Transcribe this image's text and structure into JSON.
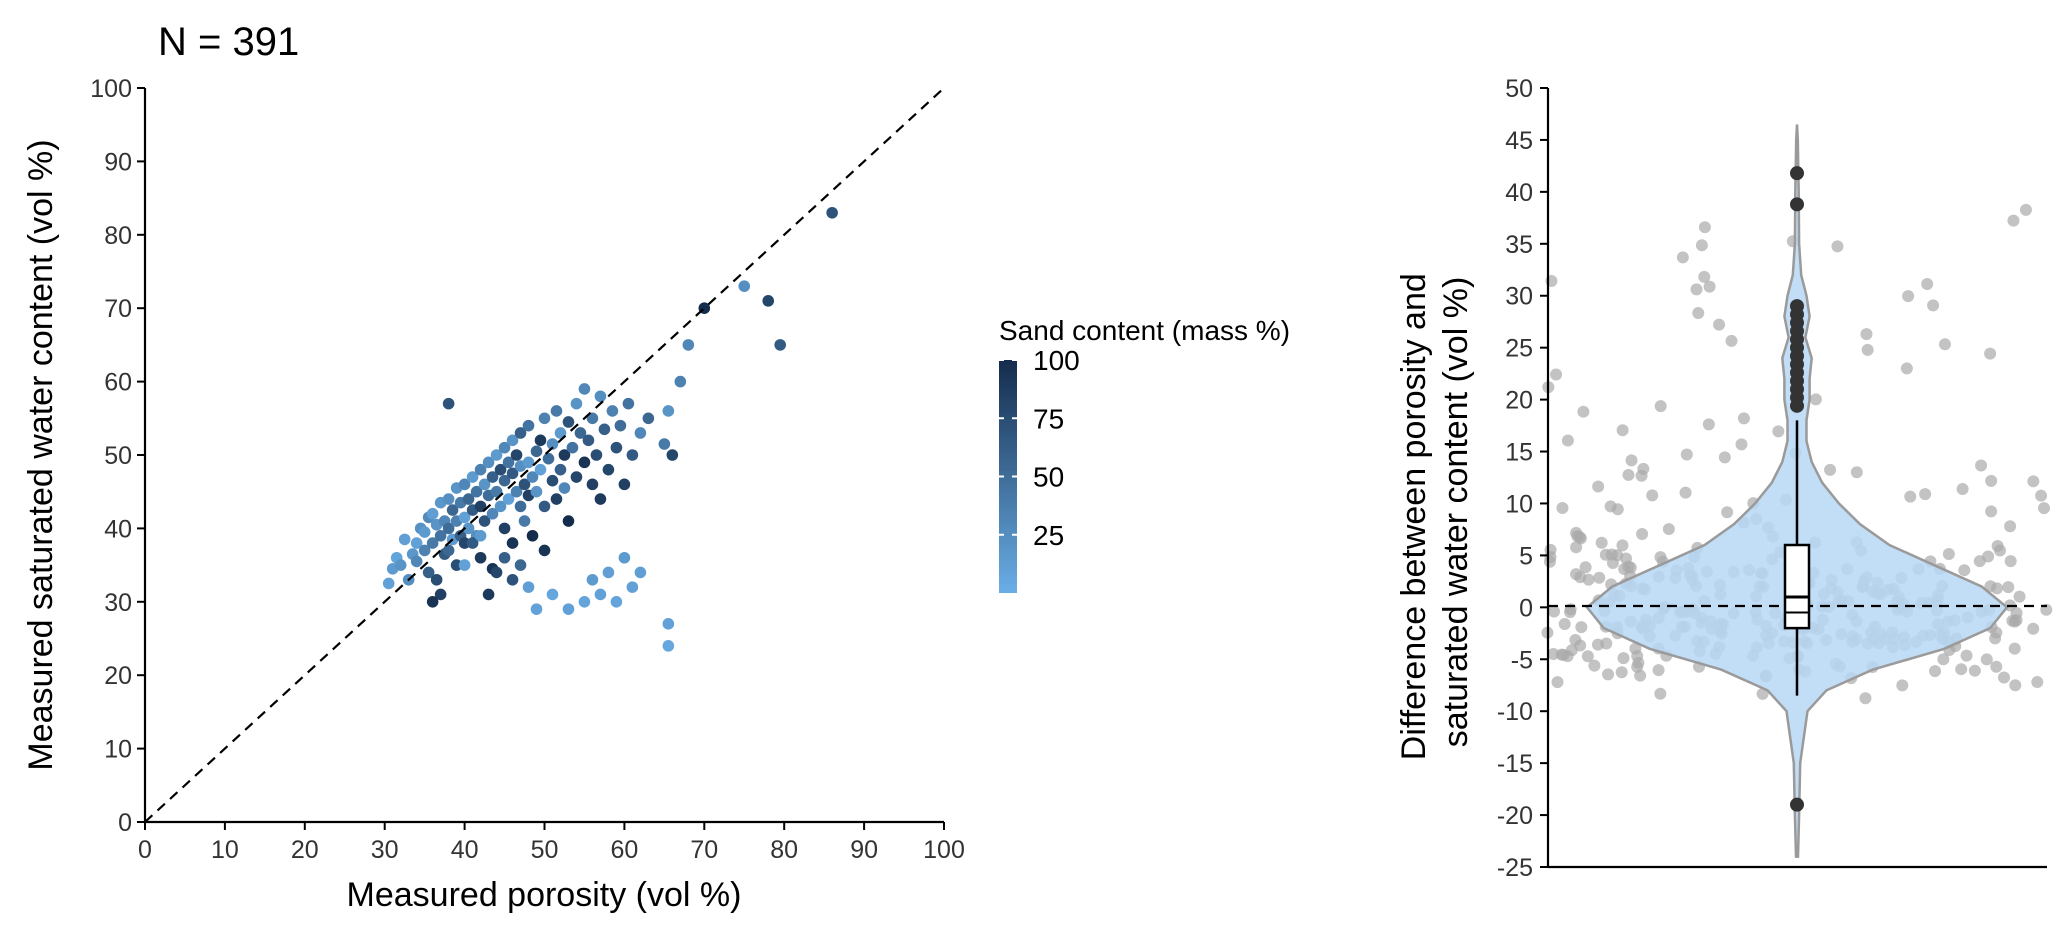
{
  "chart_data": [
    {
      "type": "scatter",
      "title": "N = 391",
      "xlabel": "Measured porosity (vol %)",
      "ylabel": "Measured saturated water content (vol %)",
      "xlim": [
        0,
        100
      ],
      "ylim": [
        0,
        100
      ],
      "x_ticks": [
        "0",
        "10",
        "20",
        "30",
        "40",
        "50",
        "60",
        "70",
        "80",
        "90",
        "100"
      ],
      "y_ticks": [
        "0",
        "10",
        "20",
        "30",
        "40",
        "50",
        "60",
        "70",
        "80",
        "90",
        "100"
      ],
      "reference_line": "1:1 dashed",
      "grid": false,
      "colorbar": {
        "title": "Sand content (mass %)",
        "ticks": [
          "25",
          "50",
          "75",
          "100"
        ],
        "range": [
          0,
          100
        ],
        "low_color": "#6aaee6",
        "high_color": "#142c4c"
      },
      "points": [
        [
          30.5,
          32.5,
          10
        ],
        [
          31,
          34.5,
          15
        ],
        [
          31.5,
          36,
          8
        ],
        [
          32,
          35,
          20
        ],
        [
          32.5,
          38.5,
          12
        ],
        [
          33,
          33,
          25
        ],
        [
          33.5,
          36.5,
          18
        ],
        [
          34,
          35.5,
          30
        ],
        [
          34,
          38,
          10
        ],
        [
          34.5,
          40,
          22
        ],
        [
          35,
          37,
          35
        ],
        [
          35,
          39.5,
          15
        ],
        [
          35.5,
          41.5,
          28
        ],
        [
          35.5,
          34,
          60
        ],
        [
          36,
          38,
          40
        ],
        [
          36,
          42,
          12
        ],
        [
          36.5,
          40.5,
          20
        ],
        [
          36.5,
          33,
          75
        ],
        [
          37,
          39,
          45
        ],
        [
          37,
          43.5,
          18
        ],
        [
          37.5,
          41,
          30
        ],
        [
          37.5,
          36.5,
          65
        ],
        [
          38,
          40,
          50
        ],
        [
          38,
          44,
          25
        ],
        [
          38,
          57,
          70
        ],
        [
          38.5,
          38.5,
          15
        ],
        [
          38.5,
          42.5,
          55
        ],
        [
          39,
          41,
          35
        ],
        [
          39,
          45.5,
          20
        ],
        [
          39.5,
          39,
          60
        ],
        [
          39.5,
          43.5,
          40
        ],
        [
          40,
          41.5,
          10
        ],
        [
          40,
          46,
          30
        ],
        [
          40,
          38,
          80
        ],
        [
          40.5,
          44,
          55
        ],
        [
          40.5,
          40,
          20
        ],
        [
          41,
          42.5,
          65
        ],
        [
          41,
          47,
          15
        ],
        [
          41.5,
          45,
          45
        ],
        [
          41.5,
          39,
          25
        ],
        [
          42,
          43,
          85
        ],
        [
          42,
          48,
          35
        ],
        [
          42,
          36,
          90
        ],
        [
          42.5,
          46,
          20
        ],
        [
          42.5,
          41,
          70
        ],
        [
          43,
          44.5,
          50
        ],
        [
          43,
          49,
          25
        ],
        [
          43.5,
          47,
          60
        ],
        [
          43.5,
          42,
          30
        ],
        [
          43.5,
          34.5,
          95
        ],
        [
          44,
          45,
          40
        ],
        [
          44,
          50,
          15
        ],
        [
          44.5,
          48,
          75
        ],
        [
          44.5,
          43,
          20
        ],
        [
          45,
          46.5,
          55
        ],
        [
          45,
          51,
          30
        ],
        [
          45,
          40,
          85
        ],
        [
          45.5,
          49,
          45
        ],
        [
          45.5,
          44,
          10
        ],
        [
          46,
          47.5,
          65
        ],
        [
          46,
          52,
          20
        ],
        [
          46,
          38,
          95
        ],
        [
          46.5,
          45,
          35
        ],
        [
          46.5,
          50,
          80
        ],
        [
          47,
          43,
          50
        ],
        [
          47,
          48.5,
          25
        ],
        [
          47,
          53,
          60
        ],
        [
          47.5,
          46,
          70
        ],
        [
          47.5,
          41,
          40
        ],
        [
          48,
          49,
          15
        ],
        [
          48,
          44.5,
          85
        ],
        [
          48,
          54,
          45
        ],
        [
          48.5,
          47,
          30
        ],
        [
          48.5,
          39,
          100
        ],
        [
          49,
          50.5,
          55
        ],
        [
          49,
          45,
          20
        ],
        [
          49.5,
          52,
          90
        ],
        [
          49.5,
          48,
          10
        ],
        [
          50,
          43,
          65
        ],
        [
          50,
          55,
          35
        ],
        [
          50,
          37,
          95
        ],
        [
          50.5,
          49.5,
          50
        ],
        [
          51,
          46.5,
          75
        ],
        [
          51,
          51.5,
          25
        ],
        [
          51.5,
          44,
          85
        ],
        [
          51.5,
          56,
          40
        ],
        [
          52,
          48,
          60
        ],
        [
          52,
          53,
          15
        ],
        [
          52.5,
          50,
          90
        ],
        [
          52.5,
          45.5,
          30
        ],
        [
          53,
          54.5,
          70
        ],
        [
          53,
          41,
          100
        ],
        [
          53.5,
          51,
          45
        ],
        [
          54,
          47,
          80
        ],
        [
          54,
          57,
          20
        ],
        [
          54.5,
          53,
          55
        ],
        [
          55,
          49,
          95
        ],
        [
          55,
          59,
          30
        ],
        [
          55.5,
          52,
          65
        ],
        [
          56,
          46,
          85
        ],
        [
          56,
          55,
          40
        ],
        [
          56.5,
          50,
          75
        ],
        [
          57,
          58,
          25
        ],
        [
          57,
          44,
          90
        ],
        [
          57.5,
          53.5,
          60
        ],
        [
          58,
          48,
          80
        ],
        [
          58.5,
          56,
          35
        ],
        [
          59,
          51,
          70
        ],
        [
          59.5,
          54,
          50
        ],
        [
          60,
          46,
          85
        ],
        [
          60.5,
          57,
          45
        ],
        [
          61,
          50,
          65
        ],
        [
          62,
          53,
          30
        ],
        [
          63,
          55,
          55
        ],
        [
          65,
          51.5,
          40
        ],
        [
          65.5,
          56,
          20
        ],
        [
          66,
          50,
          80
        ],
        [
          67,
          60,
          35
        ],
        [
          68,
          65,
          30
        ],
        [
          70,
          70,
          100
        ],
        [
          75,
          73,
          25
        ],
        [
          78,
          71,
          80
        ],
        [
          79.5,
          65,
          65
        ],
        [
          86,
          83,
          70
        ],
        [
          65.5,
          27,
          10
        ],
        [
          65.5,
          24,
          5
        ],
        [
          56,
          33,
          15
        ],
        [
          57,
          31,
          10
        ],
        [
          58,
          34,
          12
        ],
        [
          59,
          30,
          8
        ],
        [
          60,
          36,
          15
        ],
        [
          61,
          32,
          10
        ],
        [
          62,
          34,
          12
        ],
        [
          55,
          30,
          8
        ],
        [
          53,
          29,
          10
        ],
        [
          51,
          31,
          6
        ],
        [
          49,
          29,
          9
        ],
        [
          48,
          32,
          12
        ],
        [
          47,
          35,
          55
        ],
        [
          46,
          33,
          70
        ],
        [
          45,
          36,
          60
        ],
        [
          44,
          34,
          80
        ],
        [
          43,
          31,
          90
        ],
        [
          41,
          38,
          65
        ],
        [
          39,
          35,
          75
        ],
        [
          37,
          31,
          85
        ],
        [
          36,
          30,
          95
        ],
        [
          38,
          37,
          55
        ],
        [
          40,
          35,
          10
        ],
        [
          42,
          39,
          15
        ]
      ]
    },
    {
      "type": "violin",
      "ylabel": "Difference between porosity and saturated water content (vol %)",
      "ylabel_lines": [
        "Difference between porosity and",
        "saturated water content (vol %)"
      ],
      "ylim": [
        -25,
        50
      ],
      "y_ticks": [
        "-25",
        "-20",
        "-15",
        "-10",
        "-5",
        "0",
        "5",
        "10",
        "15",
        "20",
        "25",
        "30",
        "35",
        "40",
        "45",
        "50"
      ],
      "reference_line": "y = 0 dashed",
      "fill_color": "#b7d7f4",
      "jitter_color": "#a9a9a9",
      "boxplot": {
        "lower_whisker": -8.5,
        "q1": -2,
        "median": 1,
        "q3": 6,
        "upper_whisker": 18,
        "mean": -0.5
      },
      "outliers": [
        41.8,
        38.8,
        29,
        28.2,
        27.4,
        26.6,
        25.8,
        25,
        24.2,
        23.4,
        22.6,
        21.8,
        21,
        20.2,
        19.4,
        -19
      ],
      "density_profile": [
        [
          -24,
          0.005
        ],
        [
          -20,
          0.01
        ],
        [
          -15,
          0.015
        ],
        [
          -10,
          0.05
        ],
        [
          -8,
          0.14
        ],
        [
          -6,
          0.36
        ],
        [
          -4,
          0.7
        ],
        [
          -2,
          0.92
        ],
        [
          0,
          1.0
        ],
        [
          2,
          0.88
        ],
        [
          4,
          0.66
        ],
        [
          6,
          0.44
        ],
        [
          8,
          0.3
        ],
        [
          10,
          0.2
        ],
        [
          12,
          0.12
        ],
        [
          14,
          0.07
        ],
        [
          16,
          0.045
        ],
        [
          18,
          0.045
        ],
        [
          20,
          0.06
        ],
        [
          22,
          0.06
        ],
        [
          24,
          0.07
        ],
        [
          26,
          0.04
        ],
        [
          28,
          0.06
        ],
        [
          30,
          0.045
        ],
        [
          32,
          0.02
        ],
        [
          35,
          0.01
        ],
        [
          40,
          0.008
        ],
        [
          45,
          0.004
        ],
        [
          46.5,
          0.0
        ]
      ]
    }
  ]
}
